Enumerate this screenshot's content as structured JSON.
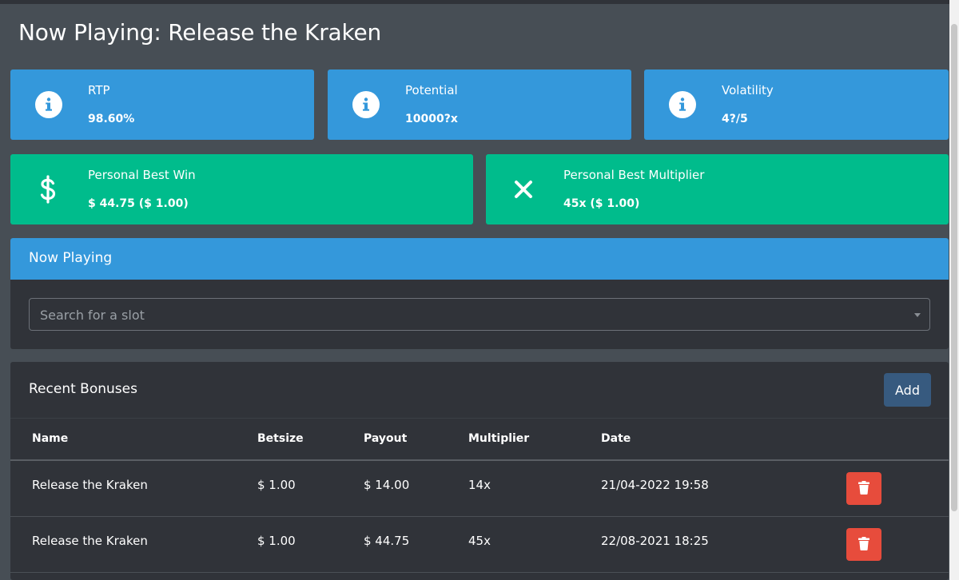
{
  "page": {
    "title": "Now Playing: Release the Kraken"
  },
  "stats": [
    {
      "label": "RTP",
      "value": "98.60%",
      "icon": "info-icon"
    },
    {
      "label": "Potential",
      "value": "10000?x",
      "icon": "info-icon"
    },
    {
      "label": "Volatility",
      "value": "4?/5",
      "icon": "info-icon"
    }
  ],
  "bests": [
    {
      "label": "Personal Best Win",
      "value": "$ 44.75 ($ 1.00)",
      "icon": "dollar-icon"
    },
    {
      "label": "Personal Best Multiplier",
      "value": "45x ($ 1.00)",
      "icon": "times-icon"
    }
  ],
  "now_playing": {
    "header": "Now Playing",
    "search_placeholder": "Search for a slot"
  },
  "recent_bonuses": {
    "title": "Recent Bonuses",
    "add_label": "Add",
    "columns": [
      "Name",
      "Betsize",
      "Payout",
      "Multiplier",
      "Date"
    ],
    "rows": [
      {
        "name": "Release the Kraken",
        "betsize": "$ 1.00",
        "payout": "$ 14.00",
        "multiplier": "14x",
        "date": "21/04-2022 19:58"
      },
      {
        "name": "Release the Kraken",
        "betsize": "$ 1.00",
        "payout": "$ 44.75",
        "multiplier": "45x",
        "date": "22/08-2021 18:25"
      }
    ]
  },
  "colors": {
    "background": "#474e55",
    "panel": "#303339",
    "info_blue": "#3498db",
    "success_green": "#00bc8c",
    "primary_button": "#375a7f",
    "danger_button": "#e74c3c"
  }
}
